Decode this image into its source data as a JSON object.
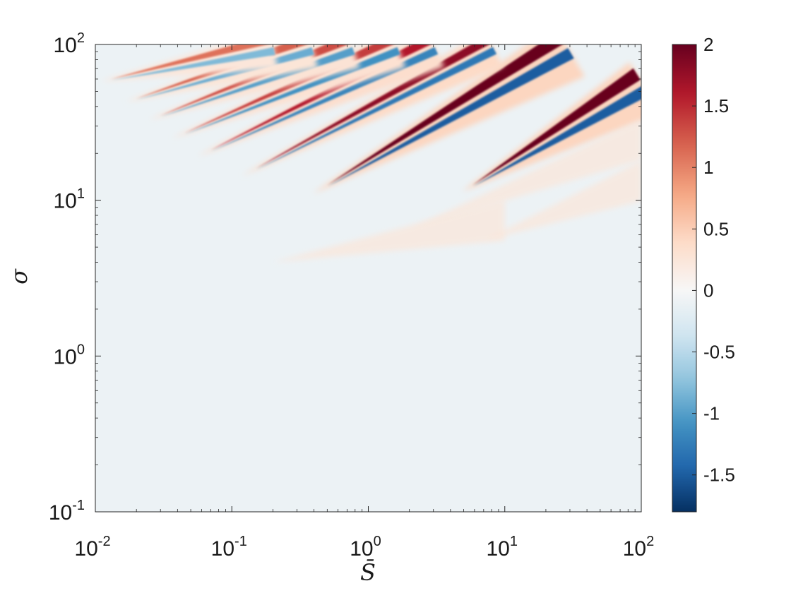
{
  "chart_data": {
    "type": "heatmap",
    "title": "",
    "xlabel": "S̄",
    "ylabel": "σ",
    "x_scale": "log",
    "y_scale": "log",
    "xlim": [
      0.01,
      100
    ],
    "ylim": [
      0.1,
      100
    ],
    "x_ticks": [
      {
        "base": "10",
        "exp": "-2",
        "value": 0.01
      },
      {
        "base": "10",
        "exp": "-1",
        "value": 0.1
      },
      {
        "base": "10",
        "exp": "0",
        "value": 1
      },
      {
        "base": "10",
        "exp": "1",
        "value": 10
      },
      {
        "base": "10",
        "exp": "2",
        "value": 100
      }
    ],
    "y_ticks": [
      {
        "base": "10",
        "exp": "-1",
        "value": 0.1
      },
      {
        "base": "10",
        "exp": "0",
        "value": 1
      },
      {
        "base": "10",
        "exp": "1",
        "value": 10
      },
      {
        "base": "10",
        "exp": "2",
        "value": 100
      }
    ],
    "colorbar": {
      "range": [
        -1.8,
        2
      ],
      "colormap": "diverging red-blue (RdBu reversed)",
      "ticks": [
        {
          "label": "2",
          "value": 2
        },
        {
          "label": "1.5",
          "value": 1.5
        },
        {
          "label": "1",
          "value": 1
        },
        {
          "label": "0.5",
          "value": 0.5
        },
        {
          "label": "0",
          "value": 0
        },
        {
          "label": "-0.5",
          "value": -0.5
        },
        {
          "label": "-1",
          "value": -1
        },
        {
          "label": "-1.5",
          "value": -1.5
        }
      ]
    },
    "background_value": -0.1,
    "bands": [
      {
        "vertex": [
          5.8,
          12.5
        ],
        "end": [
          100,
          58
        ],
        "peak": 2.0,
        "trough": -1.5
      },
      {
        "vertex": [
          0.5,
          12.5
        ],
        "end": [
          28,
          100
        ],
        "peak": 2.0,
        "trough": -1.5
      },
      {
        "vertex": [
          0.15,
          16
        ],
        "end": [
          8,
          100
        ],
        "peak": 1.8,
        "trough": -1.3
      },
      {
        "vertex": [
          0.07,
          21
        ],
        "end": [
          3,
          100
        ],
        "peak": 1.6,
        "trough": -1.2
      },
      {
        "vertex": [
          0.045,
          27
        ],
        "end": [
          1.6,
          100
        ],
        "peak": 1.4,
        "trough": -1.1
      },
      {
        "vertex": [
          0.03,
          35
        ],
        "end": [
          0.75,
          100
        ],
        "peak": 1.3,
        "trough": -1.0
      },
      {
        "vertex": [
          0.02,
          45
        ],
        "end": [
          0.38,
          100
        ],
        "peak": 1.2,
        "trough": -0.9
      },
      {
        "vertex": [
          0.013,
          60
        ],
        "end": [
          0.2,
          100
        ],
        "peak": 1.1,
        "trough": -0.8
      }
    ],
    "grid": false,
    "legend": "none"
  }
}
